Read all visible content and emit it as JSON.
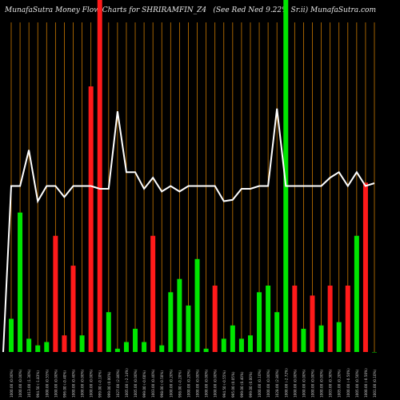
{
  "header": {
    "left_title": "MunafaSutra  Money Flow  Charts for SHRIRAMFIN_Z4",
    "right_title": "(See Red Ned 9.22% Sr.ii) MunafaSutra.com"
  },
  "colors": {
    "background": "#000000",
    "gridline": "#c87800",
    "inflow": "#00e600",
    "outflow": "#ff1a1a",
    "price_line": "#ffffff",
    "axis_text": "#cccccc"
  },
  "chart_data": {
    "type": "bar",
    "title": "MunafaSutra  Money Flow  Charts for SHRIRAMFIN_Z4",
    "subtitle": "(See Red Ned 9.22% Sr.ii) MunafaSutra.com",
    "grid": true,
    "categories": [
      "1000.00 (0.00%)",
      "1000.00 (0.00%)",
      "1013.00 (1.30%)",
      "994.50 (-1.83%)",
      "1000.00 (0.55%)",
      "1000.00 (0.00%)",
      "996.00 (-0.40%)",
      "1000.00 (0.40%)",
      "1000.00 (0.00%)",
      "1000.00 (0.00%)",
      "999.00 (-0.10%)",
      "999.00 (0.00%)",
      "1027.00 (2.80%)",
      "1005.00 (-2.14%)",
      "1005.00 (0.00%)",
      "999.00 (-0.60%)",
      "1003.00 (0.40%)",
      "998.00 (-0.50%)",
      "1000.00 (0.20%)",
      "998.00 (-0.20%)",
      "1000.00 (0.20%)",
      "1000.00 (0.00%)",
      "1000.00 (0.00%)",
      "1000.00 (0.00%)",
      "994.50 (-0.55%)",
      "995.00 (0.05%)",
      "999.00 (0.40%)",
      "999.00 (0.00%)",
      "1000.00 (0.10%)",
      "1000.00 (0.00%)",
      "1028.00 (2.80%)",
      "1000.00 (-2.72%)",
      "1000.00 (0.00%)",
      "1000.00 (0.00%)",
      "1000.00 (0.00%)",
      "1000.00 (0.00%)",
      "1003.00 (0.30%)",
      "1005.00 (0.20%)",
      "1000.00 (-0.50%)",
      "1005.00 (0.50%)",
      "1000.00 (-0.50%)",
      "1001.00 (0.10%)"
    ],
    "volume": [
      10,
      42,
      4,
      2,
      3,
      35,
      5,
      26,
      5,
      80,
      100,
      12,
      1,
      3,
      7,
      3,
      35,
      2,
      18,
      22,
      14,
      28,
      1,
      20,
      4,
      8,
      4,
      5,
      18,
      20,
      12,
      100,
      20,
      7,
      17,
      8,
      20,
      9,
      20,
      35,
      51,
      0
    ],
    "direction": [
      "in",
      "in",
      "in",
      "in",
      "in",
      "out",
      "out",
      "out",
      "in",
      "out",
      "out",
      "in",
      "in",
      "in",
      "in",
      "in",
      "out",
      "in",
      "in",
      "in",
      "in",
      "in",
      "in",
      "out",
      "in",
      "in",
      "in",
      "in",
      "in",
      "in",
      "in",
      "in",
      "out",
      "in",
      "out",
      "in",
      "out",
      "in",
      "out",
      "in",
      "out",
      "in"
    ],
    "price": [
      1000,
      1000,
      1013,
      994.5,
      1000,
      1000,
      996,
      1000,
      1000,
      1000,
      999,
      999,
      1027,
      1005,
      1005,
      999,
      1003,
      998,
      1000,
      998,
      1000,
      1000,
      1000,
      1000,
      994.5,
      995,
      999,
      999,
      1000,
      1000,
      1028,
      1000,
      1000,
      1000,
      1000,
      1000,
      1003,
      1005,
      1000,
      1005,
      1000,
      1001
    ],
    "volume_range": [
      0,
      100
    ],
    "price_range": [
      940,
      1060
    ]
  }
}
